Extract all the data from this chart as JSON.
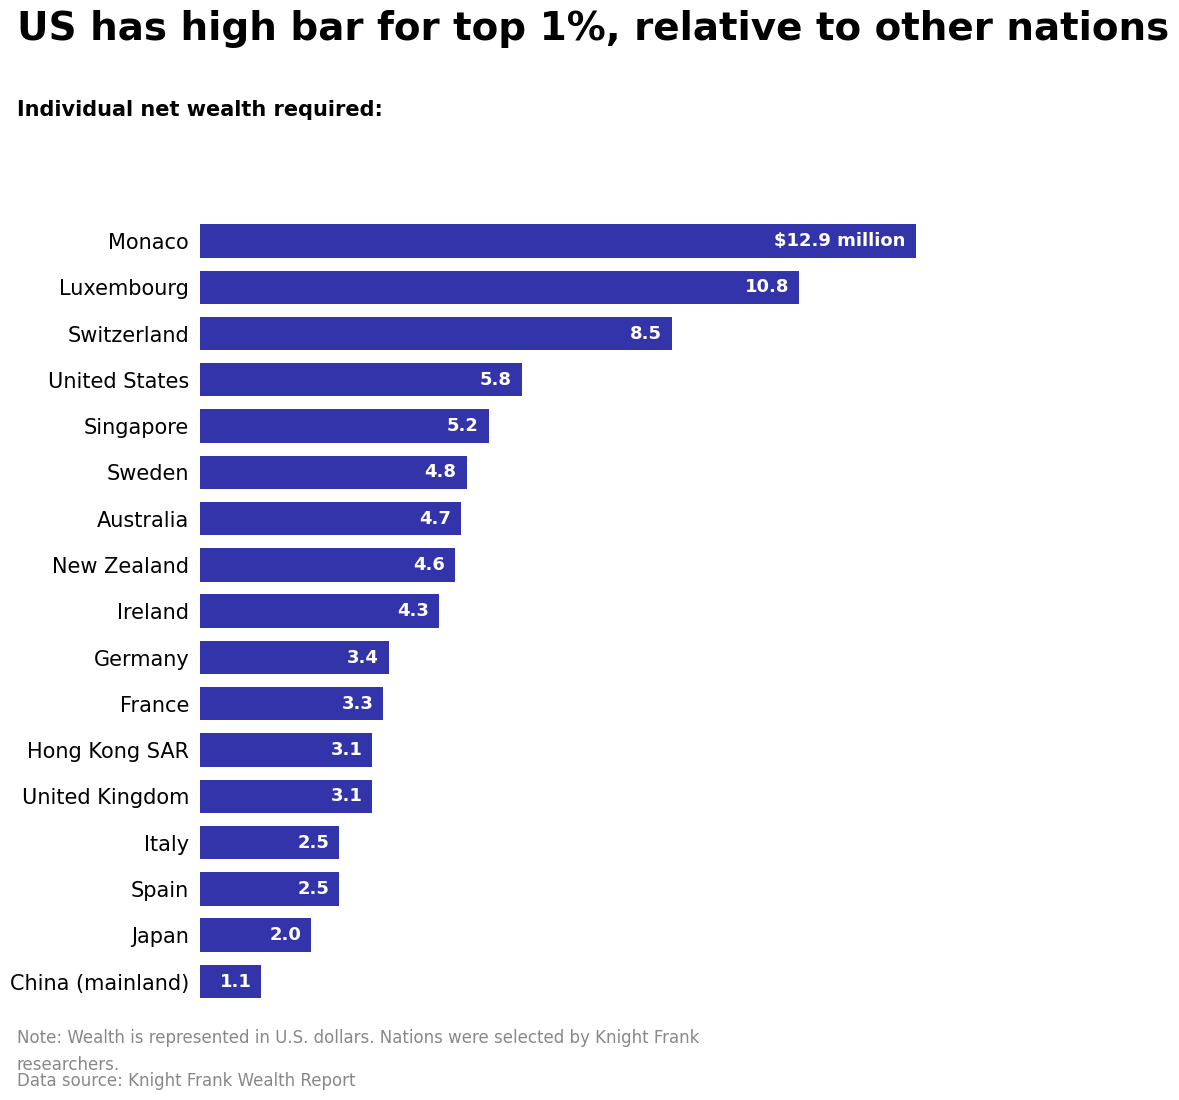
{
  "title": "US has high bar for top 1%, relative to other nations",
  "subtitle": "Individual net wealth required:",
  "note": "Note: Wealth is represented in U.S. dollars. Nations were selected by Knight Frank\nresearchers.",
  "source": "Data source: Knight Frank Wealth Report",
  "countries": [
    "Monaco",
    "Luxembourg",
    "Switzerland",
    "United States",
    "Singapore",
    "Sweden",
    "Australia",
    "New Zealand",
    "Ireland",
    "Germany",
    "France",
    "Hong Kong SAR",
    "United Kingdom",
    "Italy",
    "Spain",
    "Japan",
    "China (mainland)"
  ],
  "values": [
    12.9,
    10.8,
    8.5,
    5.8,
    5.2,
    4.8,
    4.7,
    4.6,
    4.3,
    3.4,
    3.3,
    3.1,
    3.1,
    2.5,
    2.5,
    2.0,
    1.1
  ],
  "labels": [
    "$12.9 million",
    "10.8",
    "8.5",
    "5.8",
    "5.2",
    "4.8",
    "4.7",
    "4.6",
    "4.3",
    "3.4",
    "3.3",
    "3.1",
    "3.1",
    "2.5",
    "2.5",
    "2.0",
    "1.1"
  ],
  "bar_color": "#3333AA",
  "text_color_bars": "#FFFFFF",
  "title_color": "#000000",
  "subtitle_color": "#000000",
  "note_color": "#888888",
  "background_color": "#FFFFFF",
  "title_fontsize": 28,
  "subtitle_fontsize": 15,
  "label_fontsize": 13,
  "country_fontsize": 15,
  "note_fontsize": 12,
  "xlim": [
    0,
    14.8
  ]
}
